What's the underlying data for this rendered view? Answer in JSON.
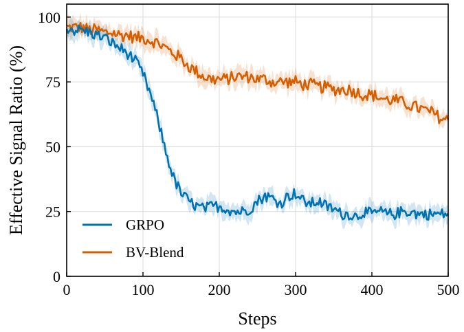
{
  "chart_data": {
    "type": "line",
    "title": "",
    "xlabel": "Steps",
    "ylabel": "Effective Signal Ratio (%)",
    "xlim": [
      0,
      500
    ],
    "ylim": [
      0,
      105
    ],
    "xticks": [
      0,
      100,
      200,
      300,
      400,
      500
    ],
    "yticks": [
      0,
      25,
      50,
      75,
      100
    ],
    "grid": true,
    "legend_position": "lower-left",
    "series": [
      {
        "name": "GRPO",
        "color": "#0072b2",
        "x": [
          0,
          10,
          20,
          30,
          40,
          50,
          60,
          70,
          80,
          90,
          100,
          110,
          120,
          130,
          140,
          150,
          160,
          170,
          180,
          190,
          200,
          210,
          220,
          230,
          240,
          250,
          260,
          270,
          280,
          290,
          300,
          310,
          320,
          330,
          340,
          350,
          360,
          370,
          380,
          390,
          400,
          410,
          420,
          430,
          440,
          450,
          460,
          470,
          480,
          490,
          500
        ],
        "values": [
          96,
          95,
          95,
          94,
          93,
          92,
          90,
          88,
          86,
          83,
          78,
          70,
          60,
          48,
          38,
          32,
          29,
          27,
          26,
          27,
          27,
          26,
          25,
          25,
          26,
          29,
          31,
          30,
          28,
          31,
          32,
          29,
          28,
          29,
          27,
          26,
          24,
          24,
          23,
          25,
          24,
          25,
          24,
          24,
          25,
          25,
          24,
          24,
          24,
          24,
          24
        ],
        "noise": 2.2
      },
      {
        "name": "BV-Blend",
        "color": "#d55e00",
        "x": [
          0,
          10,
          20,
          30,
          40,
          50,
          60,
          70,
          80,
          90,
          100,
          110,
          120,
          130,
          140,
          150,
          160,
          170,
          180,
          190,
          200,
          210,
          220,
          230,
          240,
          250,
          260,
          270,
          280,
          290,
          300,
          310,
          320,
          330,
          340,
          350,
          360,
          370,
          380,
          390,
          400,
          410,
          420,
          430,
          440,
          450,
          460,
          470,
          480,
          490,
          500
        ],
        "values": [
          96,
          96,
          96,
          95,
          95,
          94,
          94,
          93,
          93,
          92,
          92,
          91,
          90,
          88,
          86,
          84,
          81,
          79,
          77,
          76,
          76,
          76,
          77,
          77,
          77,
          76,
          76,
          75,
          75,
          75,
          75,
          74,
          74,
          73,
          73,
          72,
          72,
          72,
          71,
          70,
          70,
          69,
          68,
          68,
          67,
          66,
          65,
          64,
          63,
          61,
          60
        ],
        "noise": 2.4
      }
    ]
  }
}
